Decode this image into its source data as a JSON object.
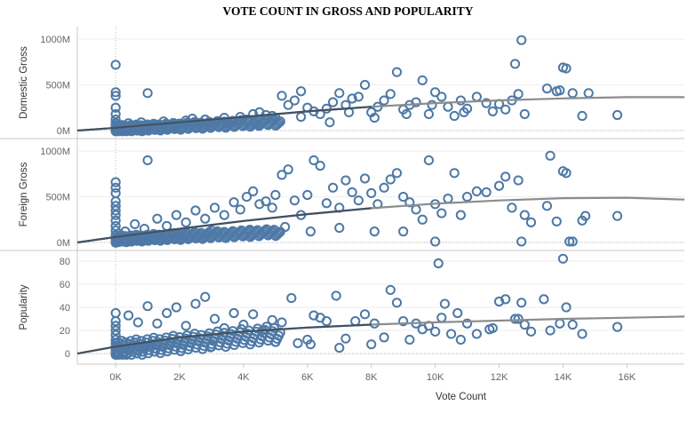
{
  "title": "VOTE COUNT IN GROSS AND POPULARITY",
  "chart_data": {
    "type": "scatter",
    "xlabel": "Vote Count",
    "xlim": [
      -1200,
      17800
    ],
    "xticks": [
      {
        "v": 0,
        "label": "0K"
      },
      {
        "v": 2000,
        "label": "2K"
      },
      {
        "v": 4000,
        "label": "4K"
      },
      {
        "v": 6000,
        "label": "6K"
      },
      {
        "v": 8000,
        "label": "8K"
      },
      {
        "v": 10000,
        "label": "10K"
      },
      {
        "v": 12000,
        "label": "12K"
      },
      {
        "v": 14000,
        "label": "14K"
      },
      {
        "v": 16000,
        "label": "16K"
      }
    ],
    "colors": {
      "marker": "#4e79a7",
      "trend": "#8c8c8c",
      "trend_dark": "#3a4a5c",
      "grid": "#e6e6e6"
    },
    "panels": [
      {
        "ylabel": "Domestic Gross",
        "ylim": [
          -10,
          1060
        ],
        "yticks": [
          {
            "v": 0,
            "label": "0M"
          },
          {
            "v": 500,
            "label": "500M"
          },
          {
            "v": 1000,
            "label": "1000M"
          }
        ],
        "trend": [
          [
            -1200,
            0
          ],
          [
            0,
            30
          ],
          [
            2000,
            90
          ],
          [
            4000,
            150
          ],
          [
            6000,
            210
          ],
          [
            8000,
            260
          ],
          [
            10000,
            300
          ],
          [
            12000,
            330
          ],
          [
            14000,
            352
          ],
          [
            16000,
            365
          ],
          [
            17800,
            365
          ]
        ],
        "points": [
          [
            0,
            720
          ],
          [
            0,
            420
          ],
          [
            0,
            380
          ],
          [
            0,
            250
          ],
          [
            0,
            180
          ],
          [
            0,
            120
          ],
          [
            0,
            80
          ],
          [
            0,
            60
          ],
          [
            0,
            40
          ],
          [
            0,
            20
          ],
          [
            0,
            10
          ],
          [
            0,
            5
          ],
          [
            1000,
            410
          ],
          [
            200,
            60
          ],
          [
            400,
            80
          ],
          [
            600,
            50
          ],
          [
            800,
            90
          ],
          [
            1200,
            70
          ],
          [
            1500,
            100
          ],
          [
            1800,
            60
          ],
          [
            2200,
            110
          ],
          [
            2500,
            90
          ],
          [
            2800,
            120
          ],
          [
            3100,
            80
          ],
          [
            3400,
            140
          ],
          [
            3700,
            100
          ],
          [
            3900,
            150
          ],
          [
            4100,
            120
          ],
          [
            4300,
            180
          ],
          [
            4500,
            200
          ],
          [
            4700,
            170
          ],
          [
            4900,
            160
          ],
          [
            5000,
            140
          ],
          [
            5200,
            380
          ],
          [
            5400,
            280
          ],
          [
            5600,
            330
          ],
          [
            5800,
            430
          ],
          [
            6000,
            250
          ],
          [
            6200,
            210
          ],
          [
            6400,
            180
          ],
          [
            6600,
            240
          ],
          [
            6800,
            310
          ],
          [
            7000,
            410
          ],
          [
            7200,
            280
          ],
          [
            7400,
            350
          ],
          [
            7600,
            370
          ],
          [
            7800,
            500
          ],
          [
            8000,
            200
          ],
          [
            8200,
            260
          ],
          [
            8400,
            330
          ],
          [
            8600,
            400
          ],
          [
            8800,
            640
          ],
          [
            9000,
            230
          ],
          [
            9200,
            280
          ],
          [
            9400,
            310
          ],
          [
            9600,
            550
          ],
          [
            9800,
            180
          ],
          [
            10000,
            420
          ],
          [
            10200,
            370
          ],
          [
            10400,
            260
          ],
          [
            10600,
            160
          ],
          [
            10800,
            330
          ],
          [
            11000,
            240
          ],
          [
            11300,
            370
          ],
          [
            11600,
            300
          ],
          [
            12000,
            290
          ],
          [
            12200,
            230
          ],
          [
            12400,
            330
          ],
          [
            12600,
            400
          ],
          [
            12800,
            180
          ],
          [
            12700,
            990
          ],
          [
            12500,
            730
          ],
          [
            13500,
            460
          ],
          [
            13800,
            430
          ],
          [
            13900,
            440
          ],
          [
            14000,
            690
          ],
          [
            14100,
            680
          ],
          [
            14300,
            410
          ],
          [
            14600,
            160
          ],
          [
            14800,
            410
          ],
          [
            15700,
            170
          ],
          [
            2400,
            130
          ],
          [
            3000,
            60
          ],
          [
            3500,
            90
          ],
          [
            4400,
            70
          ],
          [
            5800,
            150
          ],
          [
            6700,
            90
          ],
          [
            7300,
            200
          ],
          [
            8100,
            140
          ],
          [
            9100,
            180
          ],
          [
            9900,
            280
          ],
          [
            10900,
            200
          ],
          [
            11800,
            210
          ]
        ]
      },
      {
        "ylabel": "Foreign Gross",
        "ylim": [
          -10,
          1060
        ],
        "yticks": [
          {
            "v": 0,
            "label": "0M"
          },
          {
            "v": 500,
            "label": "500M"
          },
          {
            "v": 1000,
            "label": "1000M"
          }
        ],
        "trend": [
          [
            -1200,
            0
          ],
          [
            0,
            60
          ],
          [
            2000,
            150
          ],
          [
            4000,
            235
          ],
          [
            6000,
            310
          ],
          [
            8000,
            375
          ],
          [
            10000,
            425
          ],
          [
            12000,
            460
          ],
          [
            14000,
            485
          ],
          [
            16000,
            490
          ],
          [
            17800,
            470
          ]
        ],
        "points": [
          [
            0,
            660
          ],
          [
            0,
            600
          ],
          [
            0,
            540
          ],
          [
            0,
            450
          ],
          [
            0,
            400
          ],
          [
            0,
            350
          ],
          [
            0,
            300
          ],
          [
            0,
            240
          ],
          [
            0,
            180
          ],
          [
            0,
            130
          ],
          [
            0,
            80
          ],
          [
            0,
            40
          ],
          [
            0,
            10
          ],
          [
            1000,
            900
          ],
          [
            300,
            120
          ],
          [
            600,
            200
          ],
          [
            900,
            150
          ],
          [
            1300,
            260
          ],
          [
            1600,
            180
          ],
          [
            1900,
            300
          ],
          [
            2200,
            220
          ],
          [
            2500,
            350
          ],
          [
            2800,
            260
          ],
          [
            3100,
            380
          ],
          [
            3400,
            300
          ],
          [
            3700,
            440
          ],
          [
            3900,
            360
          ],
          [
            4100,
            500
          ],
          [
            4300,
            560
          ],
          [
            4500,
            420
          ],
          [
            4700,
            450
          ],
          [
            4900,
            380
          ],
          [
            5000,
            520
          ],
          [
            5200,
            740
          ],
          [
            5400,
            800
          ],
          [
            5600,
            460
          ],
          [
            5800,
            300
          ],
          [
            6000,
            520
          ],
          [
            6200,
            900
          ],
          [
            6400,
            840
          ],
          [
            6600,
            430
          ],
          [
            6800,
            600
          ],
          [
            7000,
            380
          ],
          [
            7200,
            680
          ],
          [
            7400,
            550
          ],
          [
            7600,
            460
          ],
          [
            7800,
            700
          ],
          [
            8000,
            540
          ],
          [
            8200,
            420
          ],
          [
            8400,
            600
          ],
          [
            8600,
            690
          ],
          [
            8800,
            760
          ],
          [
            9000,
            500
          ],
          [
            9200,
            440
          ],
          [
            9400,
            360
          ],
          [
            9600,
            250
          ],
          [
            9800,
            900
          ],
          [
            10000,
            420
          ],
          [
            10200,
            320
          ],
          [
            10400,
            480
          ],
          [
            10600,
            760
          ],
          [
            10800,
            300
          ],
          [
            11000,
            500
          ],
          [
            11300,
            560
          ],
          [
            11600,
            550
          ],
          [
            12000,
            620
          ],
          [
            12200,
            720
          ],
          [
            12400,
            380
          ],
          [
            12600,
            680
          ],
          [
            12800,
            300
          ],
          [
            13000,
            220
          ],
          [
            13500,
            400
          ],
          [
            13600,
            950
          ],
          [
            13800,
            230
          ],
          [
            14000,
            780
          ],
          [
            14100,
            760
          ],
          [
            14200,
            10
          ],
          [
            14300,
            10
          ],
          [
            14600,
            240
          ],
          [
            14700,
            290
          ],
          [
            15700,
            290
          ],
          [
            12700,
            10
          ],
          [
            10000,
            10
          ],
          [
            9000,
            120
          ],
          [
            8100,
            120
          ],
          [
            7000,
            160
          ],
          [
            6100,
            120
          ],
          [
            5300,
            170
          ],
          [
            4200,
            140
          ],
          [
            3000,
            130
          ],
          [
            2000,
            100
          ]
        ]
      },
      {
        "ylabel": "Popularity",
        "ylim": [
          -3,
          83
        ],
        "yticks": [
          {
            "v": 0,
            "label": "0"
          },
          {
            "v": 20,
            "label": "20"
          },
          {
            "v": 40,
            "label": "40"
          },
          {
            "v": 60,
            "label": "60"
          },
          {
            "v": 80,
            "label": "80"
          }
        ],
        "trend": [
          [
            -1200,
            0
          ],
          [
            0,
            6
          ],
          [
            2000,
            14
          ],
          [
            4000,
            19
          ],
          [
            6000,
            22.5
          ],
          [
            8000,
            25
          ],
          [
            10000,
            27
          ],
          [
            12000,
            28.5
          ],
          [
            14000,
            30
          ],
          [
            16000,
            31
          ],
          [
            17800,
            32
          ]
        ],
        "points": [
          [
            0,
            35
          ],
          [
            0,
            28
          ],
          [
            0,
            24
          ],
          [
            0,
            20
          ],
          [
            0,
            16
          ],
          [
            0,
            12
          ],
          [
            0,
            9
          ],
          [
            0,
            6
          ],
          [
            0,
            4
          ],
          [
            0,
            2
          ],
          [
            0,
            1
          ],
          [
            0,
            0
          ],
          [
            400,
            33
          ],
          [
            700,
            27
          ],
          [
            1000,
            41
          ],
          [
            1300,
            26
          ],
          [
            1600,
            35
          ],
          [
            1900,
            40
          ],
          [
            2200,
            24
          ],
          [
            2500,
            43
          ],
          [
            2800,
            49
          ],
          [
            3100,
            30
          ],
          [
            3400,
            22
          ],
          [
            3700,
            35
          ],
          [
            4000,
            25
          ],
          [
            4300,
            34
          ],
          [
            4600,
            20
          ],
          [
            4900,
            29
          ],
          [
            5200,
            27
          ],
          [
            5500,
            48
          ],
          [
            5700,
            9
          ],
          [
            6000,
            12
          ],
          [
            6200,
            33
          ],
          [
            6400,
            31
          ],
          [
            6600,
            28
          ],
          [
            6900,
            50
          ],
          [
            7200,
            13
          ],
          [
            7500,
            28
          ],
          [
            7800,
            34
          ],
          [
            8100,
            26
          ],
          [
            8400,
            14
          ],
          [
            8600,
            55
          ],
          [
            8800,
            44
          ],
          [
            9000,
            28
          ],
          [
            9400,
            26
          ],
          [
            9600,
            21
          ],
          [
            9800,
            24
          ],
          [
            10000,
            19
          ],
          [
            10100,
            78
          ],
          [
            10200,
            31
          ],
          [
            10300,
            43
          ],
          [
            10500,
            17
          ],
          [
            10700,
            35
          ],
          [
            11000,
            26
          ],
          [
            11300,
            17
          ],
          [
            11700,
            21
          ],
          [
            12000,
            45
          ],
          [
            12200,
            47
          ],
          [
            12500,
            30
          ],
          [
            12700,
            44
          ],
          [
            12800,
            25
          ],
          [
            13000,
            19
          ],
          [
            13400,
            47
          ],
          [
            13600,
            20
          ],
          [
            13900,
            26
          ],
          [
            14000,
            82
          ],
          [
            14100,
            40
          ],
          [
            14300,
            25
          ],
          [
            14600,
            17
          ],
          [
            15700,
            23
          ],
          [
            3000,
            6
          ],
          [
            5000,
            10
          ],
          [
            6100,
            8
          ],
          [
            7000,
            5
          ],
          [
            8000,
            8
          ],
          [
            9200,
            12
          ],
          [
            10800,
            12
          ],
          [
            11800,
            22
          ],
          [
            12600,
            30
          ]
        ]
      }
    ],
    "grid": true
  }
}
